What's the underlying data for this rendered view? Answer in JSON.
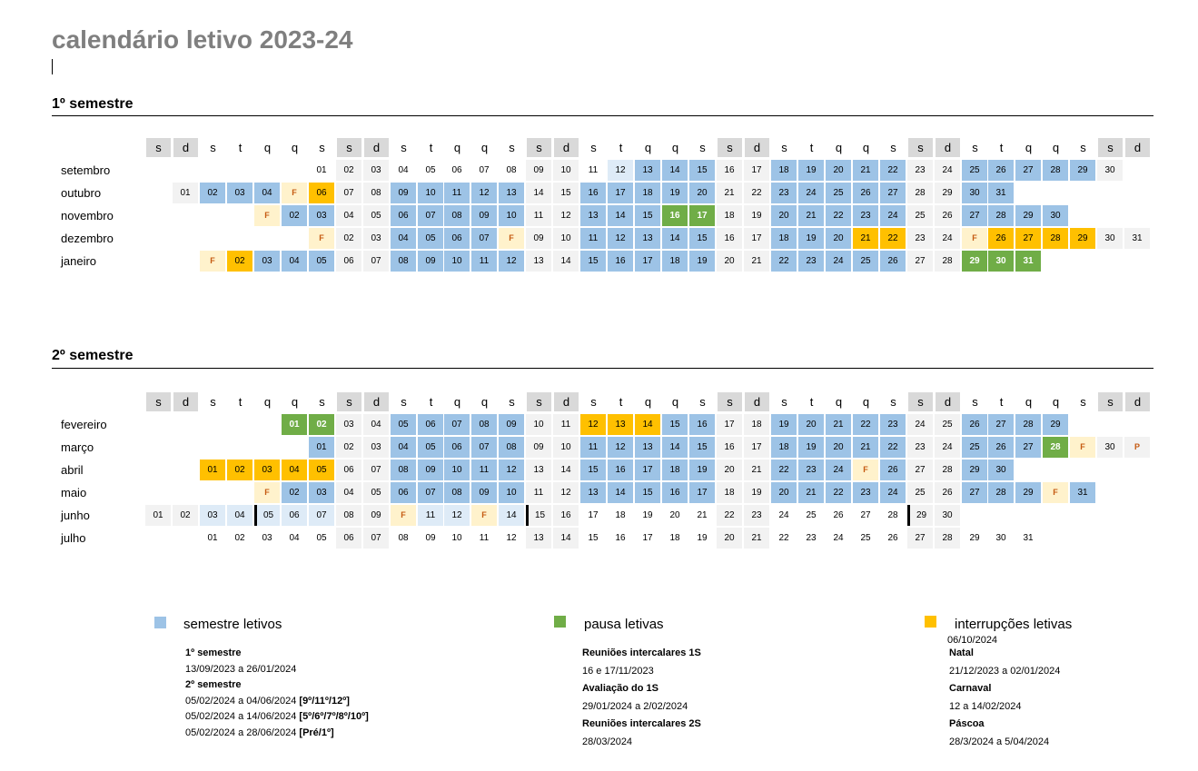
{
  "title": "calendário letivo 2023-24",
  "semesters": [
    {
      "title": "1º semestre",
      "header": [
        "s",
        "d",
        "s",
        "t",
        "q",
        "q",
        "s",
        "s",
        "d",
        "s",
        "t",
        "q",
        "q",
        "s",
        "s",
        "d",
        "s",
        "t",
        "q",
        "q",
        "s",
        "s",
        "d",
        "s",
        "t",
        "q",
        "q",
        "s",
        "s",
        "d",
        "s",
        "t",
        "q",
        "q",
        "s",
        "s",
        "d"
      ],
      "rows": [
        {
          "label": "setembro",
          "cells": [
            "",
            "",
            "",
            "",
            "",
            "",
            "01",
            "02",
            "03",
            "04",
            "05",
            "06",
            "07",
            "08",
            "09",
            "10",
            "11",
            "12",
            "13",
            "14",
            "15",
            "16",
            "17",
            "18",
            "19",
            "20",
            "21",
            "22",
            "23",
            "24",
            "25",
            "26",
            "27",
            "28",
            "29",
            "30",
            ""
          ],
          "styles": [
            "",
            "",
            "",
            "",
            "",
            "",
            "w",
            "we",
            "we",
            "w",
            "w",
            "w",
            "w",
            "w",
            "we",
            "we",
            "w",
            "lb",
            "b",
            "b",
            "b",
            "we",
            "we",
            "b",
            "b",
            "b",
            "b",
            "b",
            "we",
            "we",
            "b",
            "b",
            "b",
            "b",
            "b",
            "we",
            ""
          ]
        },
        {
          "label": "outubro",
          "cells": [
            "",
            "01",
            "02",
            "03",
            "04",
            "F",
            "06",
            "07",
            "08",
            "09",
            "10",
            "11",
            "12",
            "13",
            "14",
            "15",
            "16",
            "17",
            "18",
            "19",
            "20",
            "21",
            "22",
            "23",
            "24",
            "25",
            "26",
            "27",
            "28",
            "29",
            "30",
            "31",
            "",
            "",
            "",
            "",
            ""
          ],
          "styles": [
            "",
            "we",
            "b",
            "b",
            "b",
            "f",
            "o",
            "we",
            "we",
            "b",
            "b",
            "b",
            "b",
            "b",
            "we",
            "we",
            "b",
            "b",
            "b",
            "b",
            "b",
            "we",
            "we",
            "b",
            "b",
            "b",
            "b",
            "b",
            "we",
            "we",
            "b",
            "b",
            "",
            "",
            "",
            "",
            ""
          ]
        },
        {
          "label": "novembro",
          "cells": [
            "",
            "",
            "",
            "",
            "F",
            "02",
            "03",
            "04",
            "05",
            "06",
            "07",
            "08",
            "09",
            "10",
            "11",
            "12",
            "13",
            "14",
            "15",
            "16",
            "17",
            "18",
            "19",
            "20",
            "21",
            "22",
            "23",
            "24",
            "25",
            "26",
            "27",
            "28",
            "29",
            "30",
            "",
            "",
            ""
          ],
          "styles": [
            "",
            "",
            "",
            "",
            "f",
            "b",
            "b",
            "we",
            "we",
            "b",
            "b",
            "b",
            "b",
            "b",
            "we",
            "we",
            "b",
            "b",
            "b",
            "g",
            "g",
            "we",
            "we",
            "b",
            "b",
            "b",
            "b",
            "b",
            "we",
            "we",
            "b",
            "b",
            "b",
            "b",
            "",
            "",
            ""
          ]
        },
        {
          "label": "dezembro",
          "cells": [
            "",
            "",
            "",
            "",
            "",
            "",
            "F",
            "02",
            "03",
            "04",
            "05",
            "06",
            "07",
            "F",
            "09",
            "10",
            "11",
            "12",
            "13",
            "14",
            "15",
            "16",
            "17",
            "18",
            "19",
            "20",
            "21",
            "22",
            "23",
            "24",
            "F",
            "26",
            "27",
            "28",
            "29",
            "30",
            "31"
          ],
          "styles": [
            "",
            "",
            "",
            "",
            "",
            "",
            "f",
            "we",
            "we",
            "b",
            "b",
            "b",
            "b",
            "f",
            "we",
            "we",
            "b",
            "b",
            "b",
            "b",
            "b",
            "we",
            "we",
            "b",
            "b",
            "b",
            "o",
            "o",
            "we",
            "we",
            "f",
            "o",
            "o",
            "o",
            "o",
            "we",
            "we"
          ]
        },
        {
          "label": "janeiro",
          "cells": [
            "",
            "",
            "F",
            "02",
            "03",
            "04",
            "05",
            "06",
            "07",
            "08",
            "09",
            "10",
            "11",
            "12",
            "13",
            "14",
            "15",
            "16",
            "17",
            "18",
            "19",
            "20",
            "21",
            "22",
            "23",
            "24",
            "25",
            "26",
            "27",
            "28",
            "29",
            "30",
            "31",
            "",
            "",
            "",
            ""
          ],
          "styles": [
            "",
            "",
            "f",
            "o",
            "b",
            "b",
            "b",
            "we",
            "we",
            "b",
            "b",
            "b",
            "b",
            "b",
            "we",
            "we",
            "b",
            "b",
            "b",
            "b",
            "b",
            "we",
            "we",
            "b",
            "b",
            "b",
            "b",
            "b",
            "we",
            "we",
            "g",
            "g",
            "g",
            "",
            "",
            "",
            ""
          ]
        }
      ]
    },
    {
      "title": "2º semestre",
      "header": [
        "s",
        "d",
        "s",
        "t",
        "q",
        "q",
        "s",
        "s",
        "d",
        "s",
        "t",
        "q",
        "q",
        "s",
        "s",
        "d",
        "s",
        "t",
        "q",
        "q",
        "s",
        "s",
        "d",
        "s",
        "t",
        "q",
        "q",
        "s",
        "s",
        "d",
        "s",
        "t",
        "q",
        "q",
        "s",
        "s",
        "d"
      ],
      "rows": [
        {
          "label": "fevereiro",
          "cells": [
            "",
            "",
            "",
            "",
            "",
            "01",
            "02",
            "03",
            "04",
            "05",
            "06",
            "07",
            "08",
            "09",
            "10",
            "11",
            "12",
            "13",
            "14",
            "15",
            "16",
            "17",
            "18",
            "19",
            "20",
            "21",
            "22",
            "23",
            "24",
            "25",
            "26",
            "27",
            "28",
            "29",
            "",
            "",
            ""
          ],
          "styles": [
            "",
            "",
            "",
            "",
            "",
            "g",
            "g",
            "we",
            "we",
            "b",
            "b",
            "b",
            "b",
            "b",
            "we",
            "we",
            "o",
            "o",
            "o",
            "b",
            "b",
            "we",
            "we",
            "b",
            "b",
            "b",
            "b",
            "b",
            "we",
            "we",
            "b",
            "b",
            "b",
            "b",
            "",
            "",
            ""
          ]
        },
        {
          "label": "março",
          "cells": [
            "",
            "",
            "",
            "",
            "",
            "",
            "01",
            "02",
            "03",
            "04",
            "05",
            "06",
            "07",
            "08",
            "09",
            "10",
            "11",
            "12",
            "13",
            "14",
            "15",
            "16",
            "17",
            "18",
            "19",
            "20",
            "21",
            "22",
            "23",
            "24",
            "25",
            "26",
            "27",
            "28",
            "F",
            "30",
            "P"
          ],
          "styles": [
            "",
            "",
            "",
            "",
            "",
            "",
            "b",
            "we",
            "we",
            "b",
            "b",
            "b",
            "b",
            "b",
            "we",
            "we",
            "b",
            "b",
            "b",
            "b",
            "b",
            "we",
            "we",
            "b",
            "b",
            "b",
            "b",
            "b",
            "we",
            "we",
            "b",
            "b",
            "b",
            "g",
            "f",
            "we",
            "fw"
          ]
        },
        {
          "label": "abril",
          "cells": [
            "",
            "",
            "01",
            "02",
            "03",
            "04",
            "05",
            "06",
            "07",
            "08",
            "09",
            "10",
            "11",
            "12",
            "13",
            "14",
            "15",
            "16",
            "17",
            "18",
            "19",
            "20",
            "21",
            "22",
            "23",
            "24",
            "F",
            "26",
            "27",
            "28",
            "29",
            "30",
            "",
            "",
            "",
            "",
            ""
          ],
          "styles": [
            "",
            "",
            "o",
            "o",
            "o",
            "o",
            "o",
            "we",
            "we",
            "b",
            "b",
            "b",
            "b",
            "b",
            "we",
            "we",
            "b",
            "b",
            "b",
            "b",
            "b",
            "we",
            "we",
            "b",
            "b",
            "b",
            "f",
            "b",
            "we",
            "we",
            "b",
            "b",
            "",
            "",
            "",
            "",
            ""
          ]
        },
        {
          "label": "maio",
          "cells": [
            "",
            "",
            "",
            "",
            "F",
            "02",
            "03",
            "04",
            "05",
            "06",
            "07",
            "08",
            "09",
            "10",
            "11",
            "12",
            "13",
            "14",
            "15",
            "16",
            "17",
            "18",
            "19",
            "20",
            "21",
            "22",
            "23",
            "24",
            "25",
            "26",
            "27",
            "28",
            "29",
            "F",
            "31",
            "",
            ""
          ],
          "styles": [
            "",
            "",
            "",
            "",
            "f",
            "b",
            "b",
            "we",
            "we",
            "b",
            "b",
            "b",
            "b",
            "b",
            "we",
            "we",
            "b",
            "b",
            "b",
            "b",
            "b",
            "we",
            "we",
            "b",
            "b",
            "b",
            "b",
            "b",
            "we",
            "we",
            "b",
            "b",
            "b",
            "f",
            "b",
            "",
            ""
          ]
        },
        {
          "label": "junho",
          "cells": [
            "01",
            "02",
            "03",
            "04",
            "05",
            "06",
            "07",
            "08",
            "09",
            "F",
            "11",
            "12",
            "F",
            "14",
            "15",
            "16",
            "17",
            "18",
            "19",
            "20",
            "21",
            "22",
            "23",
            "24",
            "25",
            "26",
            "27",
            "28",
            "29",
            "30",
            "",
            "",
            "",
            "",
            "",
            "",
            ""
          ],
          "styles": [
            "we",
            "we",
            "lb",
            "lb",
            "lb bl",
            "lb",
            "lb",
            "we",
            "we",
            "f",
            "lb",
            "lb",
            "f",
            "lb",
            "we bl",
            "we",
            "w",
            "w",
            "w",
            "w",
            "w",
            "we",
            "we",
            "w",
            "w",
            "w",
            "w",
            "w",
            "we bl",
            "we",
            "",
            "",
            "",
            "",
            "",
            "",
            ""
          ]
        },
        {
          "label": "julho",
          "cells": [
            "",
            "",
            "01",
            "02",
            "03",
            "04",
            "05",
            "06",
            "07",
            "08",
            "09",
            "10",
            "11",
            "12",
            "13",
            "14",
            "15",
            "16",
            "17",
            "18",
            "19",
            "20",
            "21",
            "22",
            "23",
            "24",
            "25",
            "26",
            "27",
            "28",
            "29",
            "30",
            "31",
            "",
            "",
            "",
            ""
          ],
          "styles": [
            "",
            "",
            "w",
            "w",
            "w",
            "w",
            "w",
            "we",
            "we",
            "w",
            "w",
            "w",
            "w",
            "w",
            "we",
            "we",
            "w",
            "w",
            "w",
            "w",
            "w",
            "we",
            "we",
            "w",
            "w",
            "w",
            "w",
            "w",
            "we",
            "we",
            "w",
            "w",
            "w",
            "",
            "",
            "",
            ""
          ]
        }
      ]
    }
  ],
  "legend": {
    "colors": {
      "semestre": "#9dc3e6",
      "pausa": "#70ad47",
      "interrupcoes": "#ffc000"
    },
    "semestre": {
      "title": "semestre letivos",
      "items": [
        {
          "text": "1º semestre",
          "bold": true
        },
        {
          "text": "13/09/2023 a 26/01/2024",
          "bold": false
        },
        {
          "text": "2º semestre",
          "bold": true
        },
        {
          "text": "05/02/2024 a 04/06/2024 ",
          "suffix": "[9º/11º/12º]"
        },
        {
          "text": "05/02/2024 a 14/06/2024 ",
          "suffix": "[5º/6º/7º/8º/10º]"
        },
        {
          "text": "05/02/2024 a 28/06/2024 ",
          "suffix": "[Pré/1º]"
        }
      ]
    },
    "pausa": {
      "title": "pausa letivas",
      "items": [
        {
          "text": "Reuniões intercalares 1S",
          "bold": true
        },
        {
          "text": "16 e 17/11/2023",
          "bold": false
        },
        {
          "text": "Avaliação do 1S",
          "bold": true
        },
        {
          "text": "29/01/2024 a 2/02/2024",
          "bold": false
        },
        {
          "text": "Reuniões intercalares 2S",
          "bold": true
        },
        {
          "text": "28/03/2024",
          "bold": false
        }
      ]
    },
    "interrupcoes": {
      "title": "interrupções letivas",
      "date": "06/10/2024",
      "items": [
        {
          "text": "Natal",
          "bold": true
        },
        {
          "text": "21/12/2023 a 02/01/2024",
          "bold": false
        },
        {
          "text": "Carnaval",
          "bold": true
        },
        {
          "text": "12 a 14/02/2024",
          "bold": false
        },
        {
          "text": "Páscoa",
          "bold": true
        },
        {
          "text": "28/3/2024 a 5/04/2024",
          "bold": false
        }
      ]
    }
  }
}
